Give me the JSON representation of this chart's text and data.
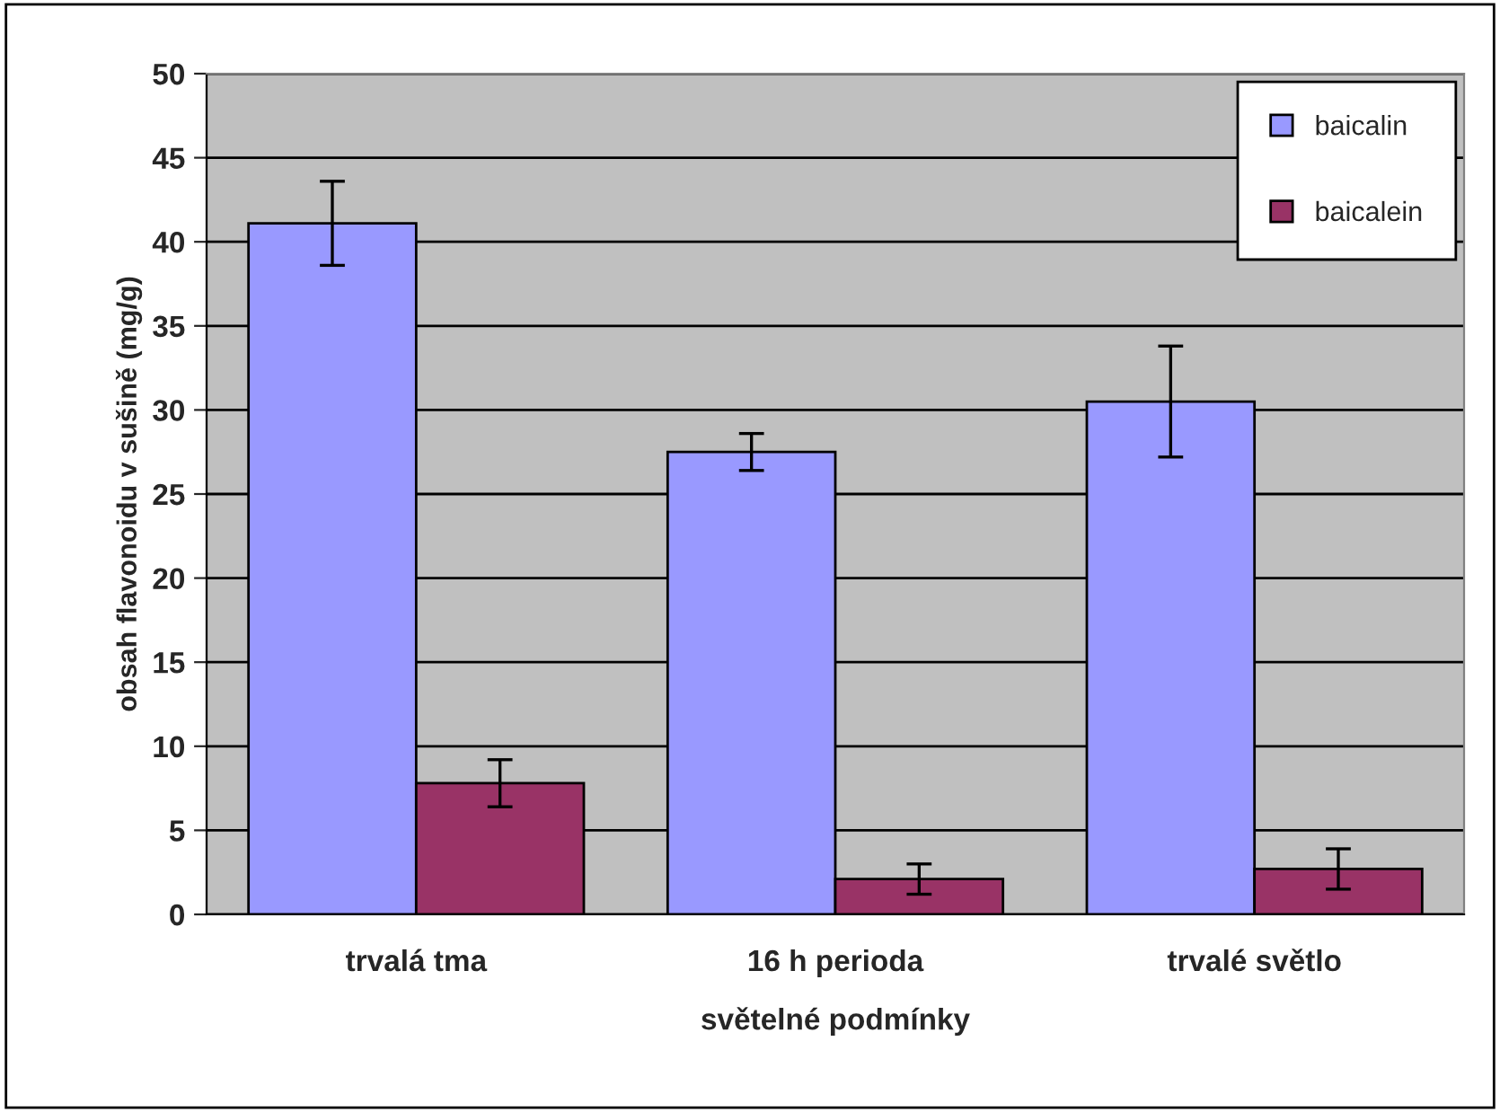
{
  "chart_data": {
    "type": "bar",
    "xlabel": "světelné podmínky",
    "ylabel": "obsah flavonoidu v sušině (mg/g)",
    "categories": [
      "trvalá tma",
      "16 h perioda",
      "trvalé světlo"
    ],
    "series": [
      {
        "name": "baicalin",
        "color": "#9999ff",
        "values": [
          41.1,
          27.5,
          30.5
        ],
        "errors": [
          2.5,
          1.1,
          3.3
        ]
      },
      {
        "name": "baicalein",
        "color": "#993366",
        "values": [
          7.8,
          2.1,
          2.7
        ],
        "errors": [
          1.4,
          0.9,
          1.2
        ]
      }
    ],
    "ylim": [
      0,
      50
    ],
    "yticks": [
      0,
      5,
      10,
      15,
      20,
      25,
      30,
      35,
      40,
      45,
      50
    ],
    "grid": "y",
    "legend": "top right"
  }
}
